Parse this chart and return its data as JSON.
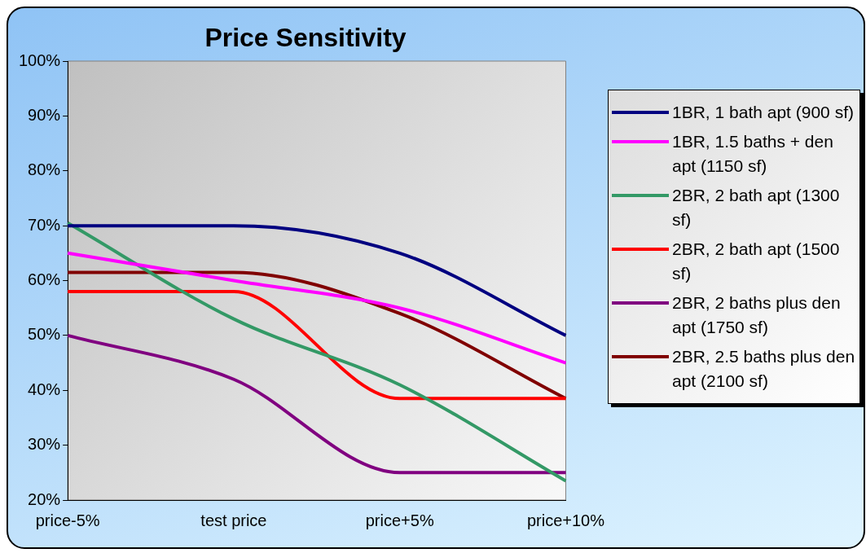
{
  "chart_data": {
    "type": "line",
    "title": "Price Sensitivity",
    "categories": [
      "price-5%",
      "test price",
      "price+5%",
      "price+10%"
    ],
    "series": [
      {
        "name": "1BR, 1 bath apt (900 sf)",
        "color": "#000080",
        "values": [
          70,
          70,
          65,
          50
        ]
      },
      {
        "name": "1BR, 1.5 baths + den apt (1150 sf)",
        "color": "#ff00ff",
        "values": [
          65,
          60,
          55,
          45
        ]
      },
      {
        "name": "2BR, 2 bath apt (1300 sf)",
        "color": "#339966",
        "values": [
          70.5,
          53,
          41,
          23.5
        ]
      },
      {
        "name": "2BR, 2 bath apt (1500 sf)",
        "color": "#ff0000",
        "values": [
          58,
          58,
          38.5,
          38.5
        ]
      },
      {
        "name": "2BR, 2 baths plus den apt (1750 sf)",
        "color": "#800080",
        "values": [
          50,
          42,
          25,
          25
        ]
      },
      {
        "name": "2BR, 2.5 baths plus den apt (2100 sf)",
        "color": "#800000",
        "values": [
          61.5,
          61.5,
          54,
          38.5
        ]
      }
    ],
    "ylim": [
      20,
      100
    ],
    "yticks": [
      {
        "value": 20,
        "label": "20%"
      },
      {
        "value": 30,
        "label": "30%"
      },
      {
        "value": 40,
        "label": "40%"
      },
      {
        "value": 50,
        "label": "50%"
      },
      {
        "value": 60,
        "label": "60%"
      },
      {
        "value": 70,
        "label": "70%"
      },
      {
        "value": 80,
        "label": "80%"
      },
      {
        "value": 90,
        "label": "90%"
      },
      {
        "value": 100,
        "label": "100%"
      }
    ],
    "grid": false,
    "legend": "right",
    "marker": "none",
    "line_style": "solid"
  }
}
